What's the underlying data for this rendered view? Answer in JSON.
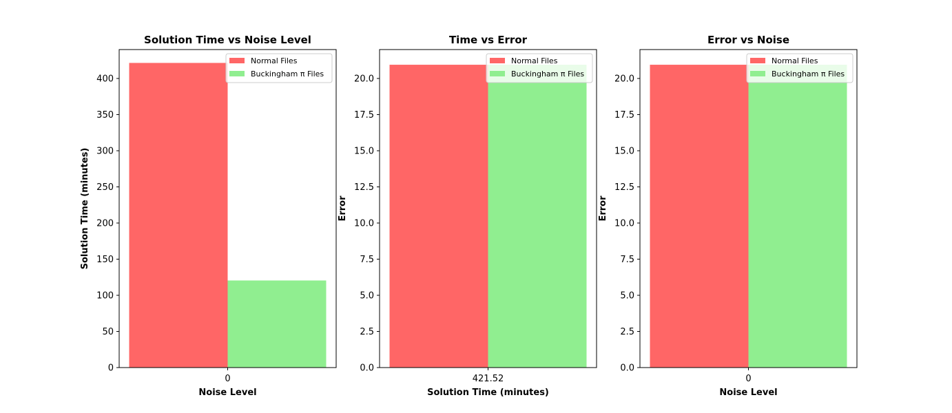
{
  "chart_data": [
    {
      "type": "bar",
      "title": "Solution Time vs Noise Level",
      "xlabel": "Noise Level",
      "ylabel": "Solution Time (minutes)",
      "categories": [
        "0"
      ],
      "ylim": [
        0,
        440
      ],
      "yticks": [
        0,
        50,
        100,
        150,
        200,
        250,
        300,
        350,
        400
      ],
      "ytick_labels": [
        "0",
        "50",
        "100",
        "150",
        "200",
        "250",
        "300",
        "350",
        "400"
      ],
      "series": [
        {
          "name": "Normal Files",
          "values": [
            421.52
          ],
          "color": "#ff6666"
        },
        {
          "name": "Buckingham π Files",
          "values": [
            120.5
          ],
          "color": "#90ee90"
        }
      ],
      "legend": "upper right",
      "grid": false
    },
    {
      "type": "bar",
      "title": "Time vs Error",
      "xlabel": "Solution Time (minutes)",
      "ylabel": "Error",
      "categories": [
        "421.52"
      ],
      "ylim": [
        0,
        22
      ],
      "yticks": [
        0,
        2.5,
        5,
        7.5,
        10,
        12.5,
        15,
        17.5,
        20
      ],
      "ytick_labels": [
        "0.0",
        "2.5",
        "5.0",
        "7.5",
        "10.0",
        "12.5",
        "15.0",
        "17.5",
        "20.0"
      ],
      "series": [
        {
          "name": "Normal Files",
          "values": [
            20.95
          ],
          "color": "#ff6666"
        },
        {
          "name": "Buckingham π Files",
          "values": [
            20.95
          ],
          "color": "#90ee90"
        }
      ],
      "legend": "upper right",
      "grid": false
    },
    {
      "type": "bar",
      "title": "Error vs Noise",
      "xlabel": "Noise Level",
      "ylabel": "Error",
      "categories": [
        "0"
      ],
      "ylim": [
        0,
        22
      ],
      "yticks": [
        0,
        2.5,
        5,
        7.5,
        10,
        12.5,
        15,
        17.5,
        20
      ],
      "ytick_labels": [
        "0.0",
        "2.5",
        "5.0",
        "7.5",
        "10.0",
        "12.5",
        "15.0",
        "17.5",
        "20.0"
      ],
      "series": [
        {
          "name": "Normal Files",
          "values": [
            20.95
          ],
          "color": "#ff6666"
        },
        {
          "name": "Buckingham π Files",
          "values": [
            20.95
          ],
          "color": "#90ee90"
        }
      ],
      "legend": "upper right",
      "grid": false
    }
  ]
}
